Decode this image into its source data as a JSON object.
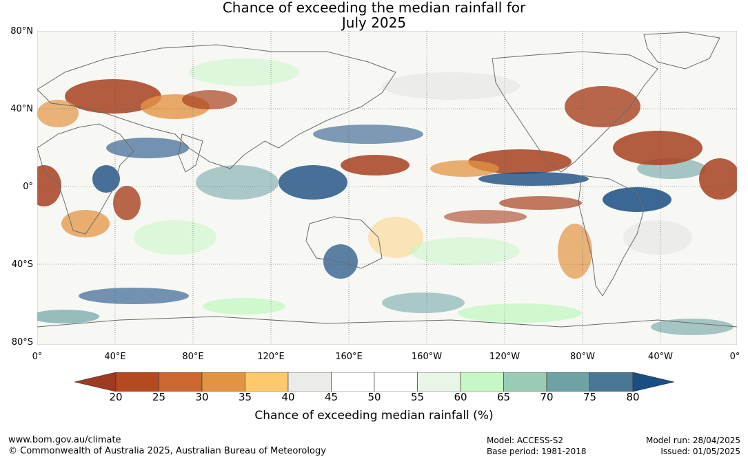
{
  "title_line1": "Chance of exceeding the median rainfall for",
  "title_line2": "July 2025",
  "lat_labels": [
    "80°N",
    "40°N",
    "0°",
    "40°S",
    "80°S"
  ],
  "lon_labels": [
    "0°",
    "40°E",
    "80°E",
    "120°E",
    "160°E",
    "160°W",
    "120°W",
    "80°W",
    "40°W",
    "0°"
  ],
  "legend": {
    "ticks": [
      "20",
      "25",
      "30",
      "35",
      "40",
      "45",
      "50",
      "55",
      "60",
      "65",
      "70",
      "75",
      "80"
    ],
    "colors": [
      "#9e3a1f",
      "#b5491f",
      "#cd6830",
      "#e39443",
      "#fdc96a",
      "#ebebe8",
      "#ffffff",
      "#ffffff",
      "#e9f6e7",
      "#c6f7c4",
      "#9bcbb5",
      "#6ea2a4",
      "#4a7795",
      "#1a4d82"
    ],
    "low_end_color": "#9e3a1f",
    "high_end_color": "#1a4d82",
    "label": "Chance of exceeding median rainfall (%)"
  },
  "footer": {
    "website": "www.bom.gov.au/climate",
    "copyright": "© Commonwealth of Australia 2025, Australian Bureau of Meteorology",
    "model": "Model: ACCESS-S2",
    "base_period": "Base period: 1981-2018",
    "model_run": "Model run: 28/04/2025",
    "issued": "Issued: 01/05/2025"
  },
  "colors": {
    "dry_strong": "#a8411f",
    "dry": "#e39443",
    "dry_light": "#fdc96a",
    "neutral": "#e4e4e1",
    "wet_light": "#c6f7c4",
    "wet": "#6ea2a4",
    "wet_strong": "#1a4d82",
    "coast": "#6a6a6a"
  }
}
